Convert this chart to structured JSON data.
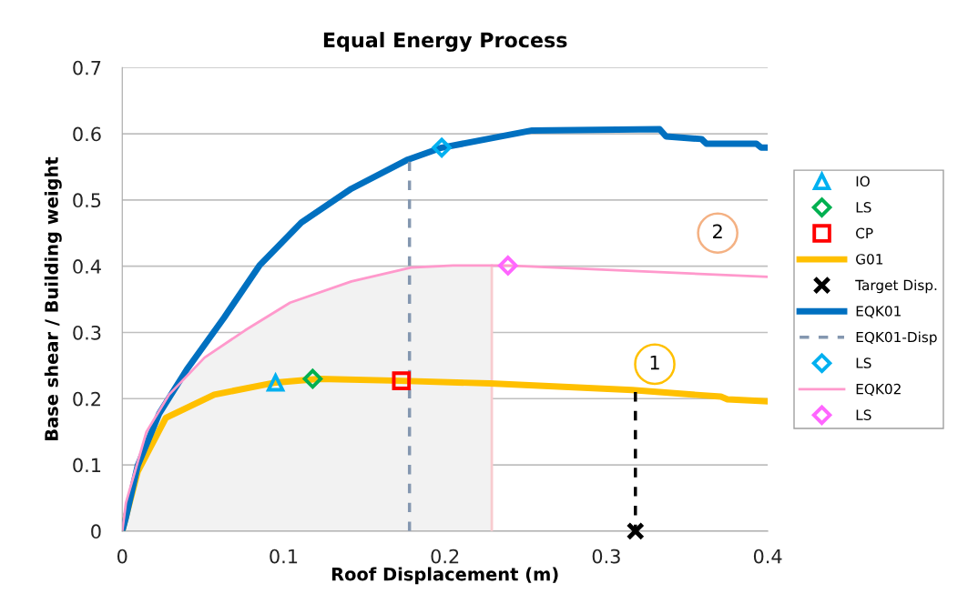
{
  "chart_data": {
    "type": "line",
    "title": "Equal Energy Process",
    "xlabel": "Roof Displacement (m)",
    "ylabel": "Base shear / Building weight",
    "xlim": [
      0,
      0.4
    ],
    "xticks": [
      0,
      0.1,
      0.2,
      0.3,
      0.4
    ],
    "ylim": [
      0,
      0.7
    ],
    "yticks": [
      0,
      0.1,
      0.2,
      0.3,
      0.4,
      0.5,
      0.6,
      0.7
    ],
    "grid": "y",
    "legend": "right",
    "annotations": [
      {
        "text": "1",
        "x": 0.33,
        "y": 0.252
      },
      {
        "text": "2",
        "x": 0.369,
        "y": 0.45
      }
    ],
    "series": [
      {
        "type": "area",
        "color": "#f2f2f2",
        "x": [
          0,
          0.0023,
          0.015,
          0.029,
          0.051,
          0.076,
          0.104,
          0.142,
          0.179,
          0.205,
          0.229
        ],
        "values": [
          0,
          0.043,
          0.15,
          0.206,
          0.262,
          0.303,
          0.345,
          0.377,
          0.398,
          0.401,
          0.401
        ]
      },
      {
        "color": "#f8cbcf",
        "x": [
          0.229,
          0.229
        ],
        "values": [
          0,
          0.401
        ]
      },
      {
        "type": "scatter",
        "name": "IO",
        "color": "#00b0f0",
        "marker": "triangle",
        "x": [
          0.095
        ],
        "values": [
          0.224
        ]
      },
      {
        "type": "scatter",
        "name": "LS",
        "color": "#00b050",
        "marker": "diamond",
        "x": [
          0.118
        ],
        "values": [
          0.23
        ]
      },
      {
        "type": "scatter",
        "name": "CP",
        "color": "#ff0000",
        "marker": "square",
        "x": [
          0.173
        ],
        "values": [
          0.227
        ]
      },
      {
        "name": "G01",
        "color": "#ffc000",
        "x": [
          0,
          0.0096,
          0.027,
          0.057,
          0.094,
          0.122,
          0.173,
          0.228,
          0.316,
          0.371,
          0.375,
          0.4
        ],
        "values": [
          0,
          0.09,
          0.171,
          0.206,
          0.224,
          0.23,
          0.227,
          0.223,
          0.213,
          0.203,
          0.199,
          0.196
        ]
      },
      {
        "color": "#000000",
        "line_style": "dashed",
        "x": [
          0.318,
          0.318
        ],
        "values": [
          0.21,
          0
        ]
      },
      {
        "type": "scatter",
        "name": "Target Disp.",
        "color": "#000000",
        "marker": "cross",
        "x": [
          0.318
        ],
        "values": [
          0
        ]
      },
      {
        "name": "EQK01",
        "color": "#0070c0",
        "x": [
          0,
          0.0023,
          0.0096,
          0.023,
          0.04,
          0.063,
          0.085,
          0.111,
          0.142,
          0.177,
          0.198,
          0.254,
          0.333,
          0.337,
          0.359,
          0.362,
          0.393,
          0.396,
          0.4
        ],
        "values": [
          0,
          0.021,
          0.099,
          0.178,
          0.244,
          0.322,
          0.401,
          0.466,
          0.517,
          0.561,
          0.579,
          0.605,
          0.607,
          0.596,
          0.592,
          0.585,
          0.585,
          0.579,
          0.579
        ]
      },
      {
        "name": "EQK01-Disp",
        "color": "#8497b0",
        "line_style": "dashed",
        "x": [
          0.178,
          0.178
        ],
        "values": [
          0,
          0.565
        ]
      },
      {
        "type": "scatter",
        "name": "LS",
        "color": "#00b0f0",
        "marker": "diamond",
        "x": [
          0.198
        ],
        "values": [
          0.579
        ]
      },
      {
        "name": "EQK02",
        "color": "#ff99cc",
        "x": [
          0,
          0.0023,
          0.015,
          0.029,
          0.051,
          0.076,
          0.104,
          0.142,
          0.179,
          0.205,
          0.239,
          0.4
        ],
        "values": [
          0,
          0.043,
          0.15,
          0.206,
          0.262,
          0.303,
          0.345,
          0.377,
          0.398,
          0.401,
          0.401,
          0.384
        ]
      },
      {
        "type": "scatter",
        "name": "LS",
        "color": "#ff66ff",
        "marker": "diamond",
        "x": [
          0.239
        ],
        "values": [
          0.401
        ]
      }
    ]
  }
}
